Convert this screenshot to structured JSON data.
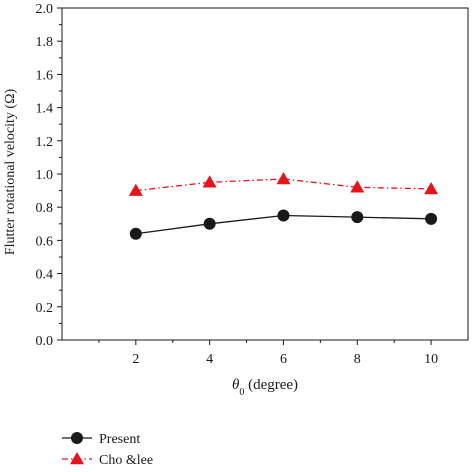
{
  "chart_data": {
    "type": "line",
    "x": [
      2,
      4,
      6,
      8,
      10
    ],
    "xlim": [
      0,
      11
    ],
    "ylim": [
      0.0,
      2.0
    ],
    "xticks": [
      "2",
      "4",
      "6",
      "8",
      "10"
    ],
    "yticks": [
      "0.0",
      "0.2",
      "0.4",
      "0.6",
      "0.8",
      "1.0",
      "1.2",
      "1.4",
      "1.6",
      "1.8",
      "2.0"
    ],
    "xlabel_symbol": "θ",
    "xlabel_subscript": "0",
    "xlabel_rest": " (degree)",
    "ylabel": "Flutter rotational velocity (Ω)",
    "grid": false,
    "legend_position": "bottom-left, below plot",
    "series": [
      {
        "name": "Present",
        "values": [
          0.64,
          0.7,
          0.75,
          0.74,
          0.73
        ],
        "color": "#1a1a1a",
        "marker": "circle",
        "line_style": "solid"
      },
      {
        "name": "Cho &lee",
        "values": [
          0.9,
          0.95,
          0.97,
          0.92,
          0.91
        ],
        "color": "#e8141b",
        "marker": "triangle",
        "line_style": "dash-dot"
      }
    ]
  }
}
